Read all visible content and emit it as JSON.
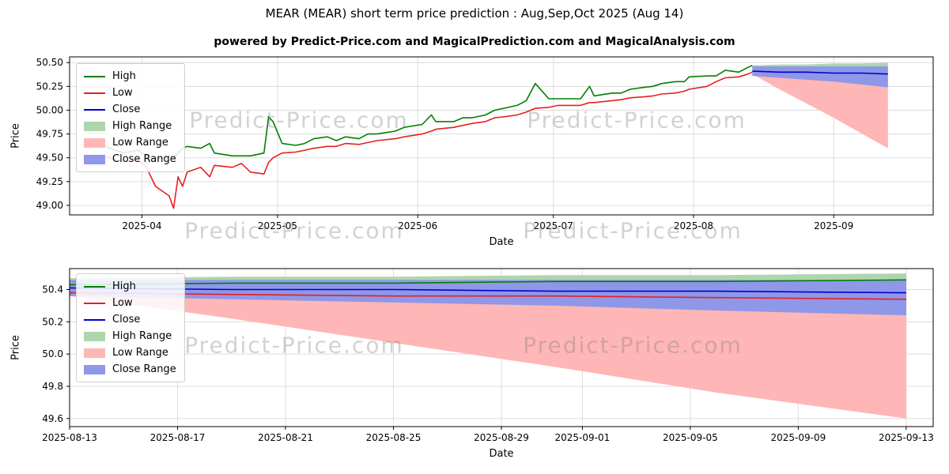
{
  "header": {
    "title": "MEAR (MEAR) short term price prediction : Aug,Sep,Oct 2025 (Aug 14)",
    "subtitle": "powered by Predict-Price.com and MagicalPrediction.com and MagicalAnalysis.com"
  },
  "watermark": {
    "text": "Predict-Price.com"
  },
  "colors": {
    "high": "#008000",
    "low": "#e62020",
    "close": "#0000cc",
    "high_range": "#aed6ae",
    "low_range": "#ffb6b6",
    "close_range": "#8f97e8",
    "grid": "#dcdcdc",
    "spine": "#000000"
  },
  "chart_data": [
    {
      "type": "line",
      "title": "",
      "xlabel": "Date",
      "ylabel": "Price",
      "x_domain": [
        "2025-03-16",
        "2025-09-23"
      ],
      "ylim": [
        48.9,
        50.56
      ],
      "yticks": [
        49.0,
        49.25,
        49.5,
        49.75,
        50.0,
        50.25,
        50.5
      ],
      "ytick_labels": [
        "49.00",
        "49.25",
        "49.50",
        "49.75",
        "50.00",
        "50.25",
        "50.50"
      ],
      "x_ticks": [
        {
          "date": "2025-04-01",
          "label": "2025-04"
        },
        {
          "date": "2025-05-01",
          "label": "2025-05"
        },
        {
          "date": "2025-06-01",
          "label": "2025-06"
        },
        {
          "date": "2025-07-01",
          "label": "2025-07"
        },
        {
          "date": "2025-08-01",
          "label": "2025-08"
        },
        {
          "date": "2025-09-01",
          "label": "2025-09"
        }
      ],
      "grid": true,
      "legend_position": "upper-left",
      "bands": [
        {
          "name": "High Range",
          "color": "#aed6ae",
          "dates": [
            "2025-08-14",
            "2025-08-20",
            "2025-08-26",
            "2025-09-01",
            "2025-09-07",
            "2025-09-13"
          ],
          "lower": [
            50.41,
            50.41,
            50.41,
            50.41,
            50.4,
            50.4
          ],
          "upper": [
            50.47,
            50.48,
            50.48,
            50.49,
            50.49,
            50.5
          ]
        },
        {
          "name": "Low Range",
          "color": "#ffb6b6",
          "dates": [
            "2025-08-14",
            "2025-08-20",
            "2025-08-26",
            "2025-09-01",
            "2025-09-07",
            "2025-09-13"
          ],
          "lower": [
            50.38,
            50.22,
            50.07,
            49.92,
            49.76,
            49.6
          ],
          "upper": [
            50.4,
            50.39,
            50.38,
            50.37,
            50.36,
            50.35
          ]
        },
        {
          "name": "Close Range",
          "color": "#8f97e8",
          "dates": [
            "2025-08-14",
            "2025-08-20",
            "2025-08-26",
            "2025-09-01",
            "2025-09-07",
            "2025-09-13"
          ],
          "lower": [
            50.36,
            50.34,
            50.32,
            50.3,
            50.27,
            50.24
          ],
          "upper": [
            50.46,
            50.46,
            50.46,
            50.46,
            50.46,
            50.46
          ]
        }
      ],
      "lines": [
        {
          "name": "High",
          "color": "#008000",
          "dates": [
            "2025-03-24",
            "2025-03-26",
            "2025-03-28",
            "2025-03-31",
            "2025-04-02",
            "2025-04-04",
            "2025-04-07",
            "2025-04-08",
            "2025-04-09",
            "2025-04-10",
            "2025-04-11",
            "2025-04-14",
            "2025-04-16",
            "2025-04-17",
            "2025-04-21",
            "2025-04-23",
            "2025-04-25",
            "2025-04-28",
            "2025-04-29",
            "2025-04-30",
            "2025-05-02",
            "2025-05-05",
            "2025-05-07",
            "2025-05-09",
            "2025-05-12",
            "2025-05-14",
            "2025-05-16",
            "2025-05-19",
            "2025-05-21",
            "2025-05-23",
            "2025-05-27",
            "2025-05-29",
            "2025-06-02",
            "2025-06-04",
            "2025-06-05",
            "2025-06-09",
            "2025-06-11",
            "2025-06-13",
            "2025-06-16",
            "2025-06-18",
            "2025-06-20",
            "2025-06-23",
            "2025-06-25",
            "2025-06-27",
            "2025-06-30",
            "2025-07-02",
            "2025-07-07",
            "2025-07-09",
            "2025-07-10",
            "2025-07-14",
            "2025-07-16",
            "2025-07-18",
            "2025-07-21",
            "2025-07-23",
            "2025-07-25",
            "2025-07-28",
            "2025-07-30",
            "2025-07-31",
            "2025-08-04",
            "2025-08-06",
            "2025-08-08",
            "2025-08-11",
            "2025-08-13",
            "2025-08-14"
          ],
          "values": [
            49.62,
            49.58,
            49.55,
            49.58,
            49.52,
            49.48,
            49.52,
            49.5,
            49.55,
            49.6,
            49.62,
            49.6,
            49.65,
            49.55,
            49.52,
            49.52,
            49.52,
            49.55,
            49.93,
            49.88,
            49.65,
            49.63,
            49.65,
            49.7,
            49.72,
            49.68,
            49.72,
            49.7,
            49.75,
            49.75,
            49.78,
            49.82,
            49.85,
            49.95,
            49.88,
            49.88,
            49.92,
            49.92,
            49.95,
            50.0,
            50.02,
            50.05,
            50.1,
            50.28,
            50.12,
            50.12,
            50.12,
            50.25,
            50.15,
            50.18,
            50.18,
            50.22,
            50.24,
            50.25,
            50.28,
            50.3,
            50.3,
            50.35,
            50.36,
            50.36,
            50.42,
            50.4,
            50.45,
            50.47
          ]
        },
        {
          "name": "Low",
          "color": "#e62020",
          "dates": [
            "2025-03-24",
            "2025-03-26",
            "2025-03-28",
            "2025-03-31",
            "2025-04-02",
            "2025-04-04",
            "2025-04-07",
            "2025-04-08",
            "2025-04-09",
            "2025-04-10",
            "2025-04-11",
            "2025-04-14",
            "2025-04-16",
            "2025-04-17",
            "2025-04-21",
            "2025-04-23",
            "2025-04-25",
            "2025-04-28",
            "2025-04-29",
            "2025-04-30",
            "2025-05-02",
            "2025-05-05",
            "2025-05-07",
            "2025-05-09",
            "2025-05-12",
            "2025-05-14",
            "2025-05-16",
            "2025-05-19",
            "2025-05-21",
            "2025-05-23",
            "2025-05-27",
            "2025-05-29",
            "2025-06-02",
            "2025-06-04",
            "2025-06-05",
            "2025-06-09",
            "2025-06-11",
            "2025-06-13",
            "2025-06-16",
            "2025-06-18",
            "2025-06-20",
            "2025-06-23",
            "2025-06-25",
            "2025-06-27",
            "2025-06-30",
            "2025-07-02",
            "2025-07-07",
            "2025-07-09",
            "2025-07-10",
            "2025-07-14",
            "2025-07-16",
            "2025-07-18",
            "2025-07-21",
            "2025-07-23",
            "2025-07-25",
            "2025-07-28",
            "2025-07-30",
            "2025-07-31",
            "2025-08-04",
            "2025-08-06",
            "2025-08-08",
            "2025-08-11",
            "2025-08-13",
            "2025-08-14"
          ],
          "values": [
            49.52,
            49.47,
            49.46,
            49.48,
            49.4,
            49.2,
            49.1,
            48.97,
            49.3,
            49.2,
            49.35,
            49.4,
            49.3,
            49.42,
            49.4,
            49.44,
            49.35,
            49.33,
            49.45,
            49.5,
            49.55,
            49.56,
            49.58,
            49.6,
            49.62,
            49.62,
            49.65,
            49.64,
            49.66,
            49.68,
            49.7,
            49.72,
            49.75,
            49.78,
            49.8,
            49.82,
            49.84,
            49.86,
            49.88,
            49.92,
            49.93,
            49.95,
            49.98,
            50.02,
            50.03,
            50.05,
            50.05,
            50.08,
            50.08,
            50.1,
            50.11,
            50.13,
            50.14,
            50.15,
            50.17,
            50.18,
            50.2,
            50.22,
            50.25,
            50.3,
            50.34,
            50.35,
            50.38,
            50.4
          ]
        },
        {
          "name": "Close",
          "color": "#0000cc",
          "dates": [
            "2025-08-14",
            "2025-08-20",
            "2025-08-26",
            "2025-09-01",
            "2025-09-07",
            "2025-09-13"
          ],
          "values": [
            50.41,
            50.4,
            50.4,
            50.39,
            50.39,
            50.38
          ]
        }
      ],
      "legend": [
        {
          "label": "High",
          "type": "line",
          "color": "#008000"
        },
        {
          "label": "Low",
          "type": "line",
          "color": "#e62020"
        },
        {
          "label": "Close",
          "type": "line",
          "color": "#0000cc"
        },
        {
          "label": "High Range",
          "type": "patch",
          "color": "#aed6ae"
        },
        {
          "label": "Low Range",
          "type": "patch",
          "color": "#ffb6b6"
        },
        {
          "label": "Close Range",
          "type": "patch",
          "color": "#8f97e8"
        }
      ]
    },
    {
      "type": "line",
      "title": "",
      "xlabel": "Date",
      "ylabel": "Price",
      "x_domain": [
        "2025-08-13",
        "2025-09-14"
      ],
      "ylim": [
        49.55,
        50.53
      ],
      "yticks": [
        49.6,
        49.8,
        50.0,
        50.2,
        50.4
      ],
      "ytick_labels": [
        "49.6",
        "49.8",
        "50.0",
        "50.2",
        "50.4"
      ],
      "x_ticks": [
        {
          "date": "2025-08-13",
          "label": "2025-08-13"
        },
        {
          "date": "2025-08-17",
          "label": "2025-08-17"
        },
        {
          "date": "2025-08-21",
          "label": "2025-08-21"
        },
        {
          "date": "2025-08-25",
          "label": "2025-08-25"
        },
        {
          "date": "2025-08-29",
          "label": "2025-08-29"
        },
        {
          "date": "2025-09-01",
          "label": "2025-09-01"
        },
        {
          "date": "2025-09-05",
          "label": "2025-09-05"
        },
        {
          "date": "2025-09-09",
          "label": "2025-09-09"
        },
        {
          "date": "2025-09-13",
          "label": "2025-09-13"
        }
      ],
      "grid": true,
      "legend_position": "upper-left",
      "bands": [
        {
          "name": "High Range",
          "color": "#aed6ae",
          "dates": [
            "2025-08-13",
            "2025-08-19",
            "2025-08-25",
            "2025-08-31",
            "2025-09-06",
            "2025-09-13"
          ],
          "lower": [
            50.41,
            50.41,
            50.41,
            50.41,
            50.4,
            50.4
          ],
          "upper": [
            50.47,
            50.48,
            50.48,
            50.49,
            50.49,
            50.5
          ]
        },
        {
          "name": "Low Range",
          "color": "#ffb6b6",
          "dates": [
            "2025-08-13",
            "2025-08-19",
            "2025-08-25",
            "2025-08-31",
            "2025-09-06",
            "2025-09-13"
          ],
          "lower": [
            50.36,
            50.22,
            50.07,
            49.92,
            49.76,
            49.6
          ],
          "upper": [
            50.4,
            50.39,
            50.38,
            50.37,
            50.36,
            50.35
          ]
        },
        {
          "name": "Close Range",
          "color": "#8f97e8",
          "dates": [
            "2025-08-13",
            "2025-08-19",
            "2025-08-25",
            "2025-08-31",
            "2025-09-06",
            "2025-09-13"
          ],
          "lower": [
            50.36,
            50.34,
            50.32,
            50.3,
            50.27,
            50.24
          ],
          "upper": [
            50.46,
            50.46,
            50.46,
            50.46,
            50.46,
            50.46
          ]
        }
      ],
      "lines": [
        {
          "name": "High",
          "color": "#008000",
          "dates": [
            "2025-08-13",
            "2025-08-19",
            "2025-08-25",
            "2025-08-31",
            "2025-09-06",
            "2025-09-13"
          ],
          "values": [
            50.43,
            50.44,
            50.44,
            50.45,
            50.45,
            50.46
          ]
        },
        {
          "name": "Low",
          "color": "#e62020",
          "dates": [
            "2025-08-13",
            "2025-08-19",
            "2025-08-25",
            "2025-08-31",
            "2025-09-06",
            "2025-09-13"
          ],
          "values": [
            50.38,
            50.37,
            50.36,
            50.36,
            50.35,
            50.34
          ]
        },
        {
          "name": "Close",
          "color": "#0000cc",
          "dates": [
            "2025-08-13",
            "2025-08-19",
            "2025-08-25",
            "2025-08-31",
            "2025-09-06",
            "2025-09-13"
          ],
          "values": [
            50.41,
            50.4,
            50.4,
            50.39,
            50.39,
            50.38
          ]
        }
      ],
      "legend": [
        {
          "label": "High",
          "type": "line",
          "color": "#008000"
        },
        {
          "label": "Low",
          "type": "line",
          "color": "#e62020"
        },
        {
          "label": "Close",
          "type": "line",
          "color": "#0000cc"
        },
        {
          "label": "High Range",
          "type": "patch",
          "color": "#aed6ae"
        },
        {
          "label": "Low Range",
          "type": "patch",
          "color": "#ffb6b6"
        },
        {
          "label": "Close Range",
          "type": "patch",
          "color": "#8f97e8"
        }
      ]
    }
  ]
}
